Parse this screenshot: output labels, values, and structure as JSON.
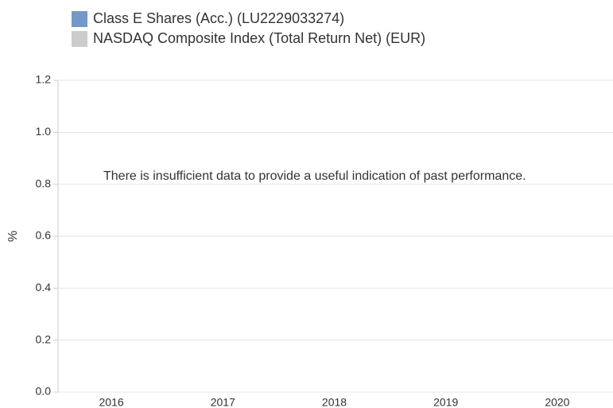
{
  "chart_data": {
    "type": "bar",
    "categories": [
      "2016",
      "2017",
      "2018",
      "2019",
      "2020"
    ],
    "series": [
      {
        "name": "Class E Shares (Acc.) (LU2229033274)",
        "color": "#7399c6",
        "values": [
          null,
          null,
          null,
          null,
          null
        ]
      },
      {
        "name": "NASDAQ Composite Index (Total Return Net) (EUR)",
        "color": "#cccccc",
        "values": [
          null,
          null,
          null,
          null,
          null
        ]
      }
    ],
    "y_label": "%",
    "annotation": "There is insufficient data to provide a useful indication of past performance.",
    "ylim": [
      0,
      1.2
    ],
    "yticks": [
      {
        "value": 0,
        "label": "0.0"
      },
      0.2,
      0.4,
      0.6,
      0.8,
      {
        "value": 1,
        "label": "1.0"
      },
      1.2
    ],
    "grid": true
  }
}
